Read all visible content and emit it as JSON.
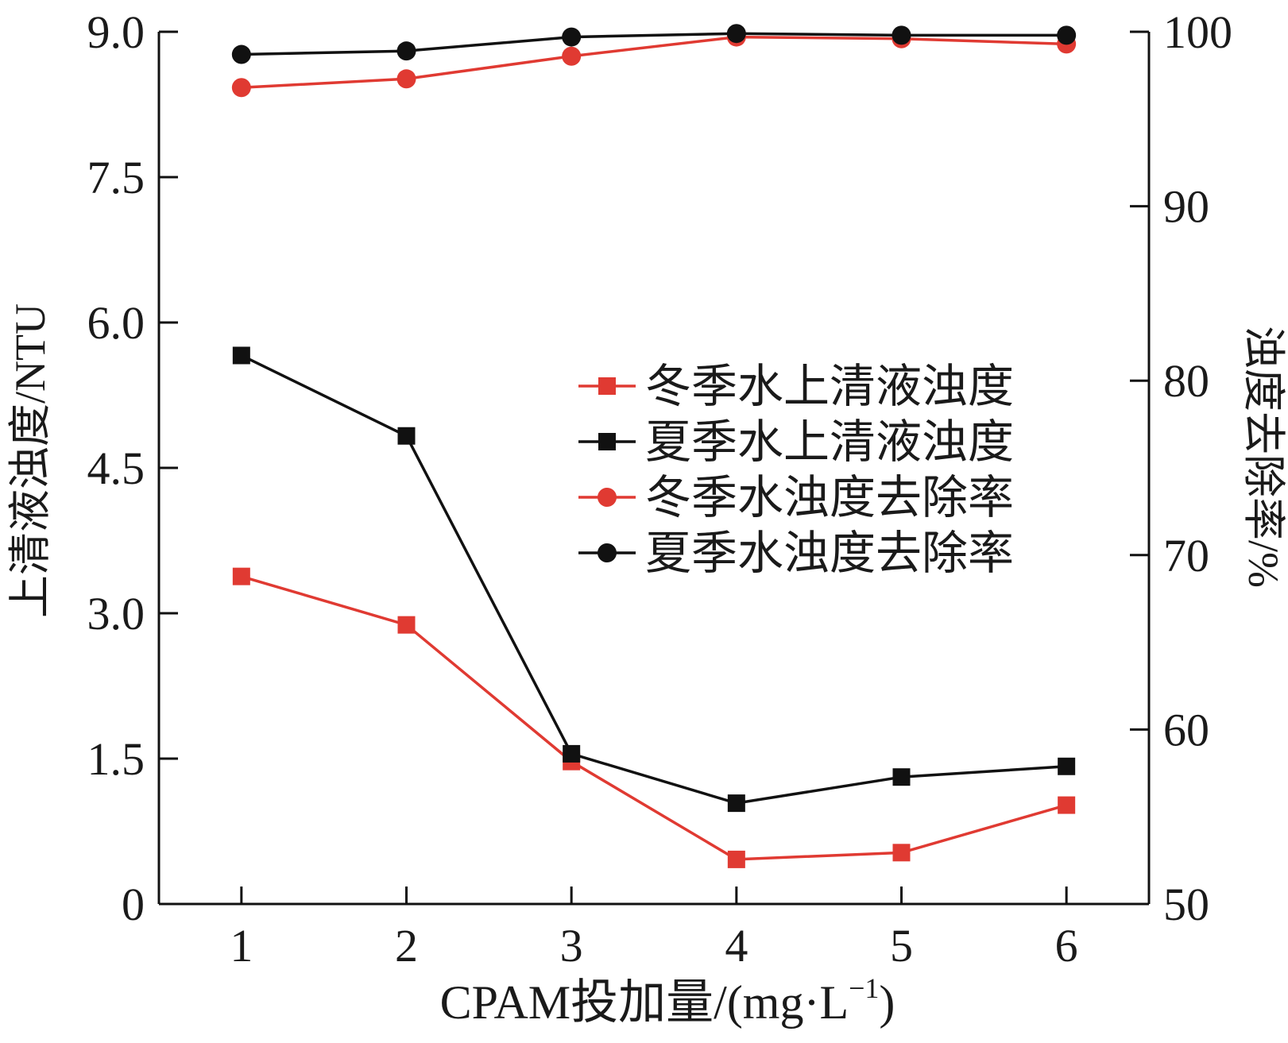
{
  "chart_data": {
    "type": "line",
    "x": [
      1,
      2,
      3,
      4,
      5,
      6
    ],
    "xticks": [
      "1",
      "2",
      "3",
      "4",
      "5",
      "6"
    ],
    "xlabel_main": "CPAM投加量/(mg·L",
    "xlabel_sup": "−1",
    "xlabel_close": ")",
    "ylabel_left": "上清液浊度/NTU",
    "ylabel_right": "浊度去除率/%",
    "ylim_left": [
      0,
      9
    ],
    "yticks_left": [
      "0",
      "1.5",
      "3.0",
      "4.5",
      "6.0",
      "7.5",
      "9.0"
    ],
    "ylim_right": [
      50,
      100
    ],
    "yticks_right": [
      "50",
      "60",
      "70",
      "80",
      "90",
      "100"
    ],
    "grid": false,
    "legend_position": "center-right",
    "series": [
      {
        "name": "冬季水上清液浊度",
        "axis": "left",
        "marker": "square",
        "color": "#e03a32",
        "values": [
          3.38,
          2.88,
          1.47,
          0.46,
          0.53,
          1.02
        ]
      },
      {
        "name": "夏季水上清液浊度",
        "axis": "left",
        "marker": "square",
        "color": "#111111",
        "values": [
          5.66,
          4.83,
          1.55,
          1.04,
          1.31,
          1.42
        ]
      },
      {
        "name": "冬季水浊度去除率",
        "axis": "right",
        "marker": "circle",
        "color": "#e03a32",
        "values": [
          96.8,
          97.3,
          98.6,
          99.7,
          99.6,
          99.3
        ]
      },
      {
        "name": "夏季水浊度去除率",
        "axis": "right",
        "marker": "circle",
        "color": "#111111",
        "values": [
          98.7,
          98.9,
          99.7,
          99.9,
          99.8,
          99.8
        ]
      }
    ]
  }
}
